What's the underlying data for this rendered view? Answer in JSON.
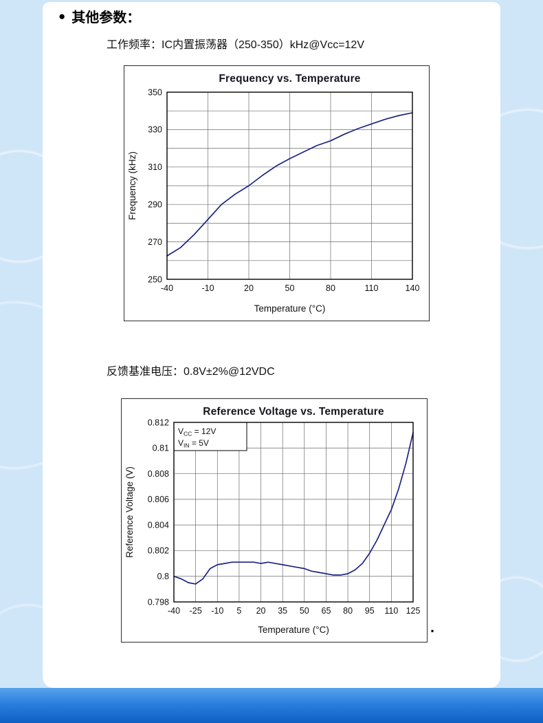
{
  "page": {
    "bullet": "●",
    "section_title": "其他参数：",
    "working_frequency_label": "工作频率：IC内置振荡器（250-350）kHz@Vcc=12V",
    "feedback_voltage_label": "反馈基准电压：0.8V±2%@12VDC",
    "trailing_dot": "."
  },
  "colors": {
    "curve": "#1b2380",
    "page_background": "#cfe5f8",
    "bottom_band": "#1a74d6"
  },
  "chart_data": [
    {
      "type": "line",
      "title": "Frequency vs. Temperature",
      "xlabel": "Temperature (°C)",
      "ylabel": "Frequency (kHz)",
      "xlim": [
        -40,
        140
      ],
      "ylim": [
        250,
        350
      ],
      "xticks": [
        -40,
        -10,
        20,
        50,
        80,
        110,
        140
      ],
      "yticks": [
        250,
        270,
        290,
        310,
        330,
        350
      ],
      "y_minor_grid": [
        260,
        280,
        300,
        320,
        340
      ],
      "grid": true,
      "legend": "none",
      "series": [
        {
          "name": "frequency_kHz",
          "x": [
            -40,
            -30,
            -20,
            -10,
            0,
            10,
            20,
            30,
            40,
            50,
            60,
            70,
            80,
            90,
            100,
            110,
            120,
            130,
            140
          ],
          "y": [
            262.5,
            267,
            274,
            282,
            290,
            295.5,
            300,
            305.5,
            310.5,
            314.5,
            318,
            321.5,
            324,
            327.5,
            330.5,
            333,
            335.5,
            337.5,
            339
          ]
        }
      ]
    },
    {
      "type": "line",
      "title": "Reference Voltage vs. Temperature",
      "xlabel": "Temperature (°C)",
      "ylabel": "Reference Voltage (V)",
      "xlim": [
        -40,
        125
      ],
      "ylim": [
        0.798,
        0.812
      ],
      "xticks": [
        -40,
        -25,
        -10,
        5,
        20,
        35,
        50,
        65,
        80,
        95,
        110,
        125
      ],
      "yticks": [
        0.798,
        0.8,
        0.802,
        0.804,
        0.806,
        0.808,
        0.81,
        0.812
      ],
      "grid": true,
      "legend": "none",
      "annotation": {
        "lines": [
          [
            "V",
            "CC",
            " = 12V"
          ],
          [
            "V",
            "IN",
            " = 5V"
          ]
        ]
      },
      "series": [
        {
          "name": "reference_voltage_V",
          "x": [
            -40,
            -35,
            -30,
            -25,
            -20,
            -15,
            -10,
            -5,
            0,
            5,
            10,
            15,
            20,
            25,
            30,
            35,
            40,
            45,
            50,
            55,
            60,
            65,
            70,
            75,
            80,
            85,
            90,
            95,
            100,
            105,
            110,
            115,
            120,
            125
          ],
          "y": [
            0.8,
            0.7998,
            0.7995,
            0.7994,
            0.7998,
            0.8006,
            0.8009,
            0.801,
            0.8011,
            0.8011,
            0.8011,
            0.8011,
            0.801,
            0.8011,
            0.801,
            0.8009,
            0.8008,
            0.8007,
            0.8006,
            0.8004,
            0.8003,
            0.8002,
            0.8001,
            0.8001,
            0.8002,
            0.8005,
            0.801,
            0.8018,
            0.8028,
            0.804,
            0.8052,
            0.8068,
            0.8088,
            0.8112
          ]
        }
      ]
    }
  ]
}
